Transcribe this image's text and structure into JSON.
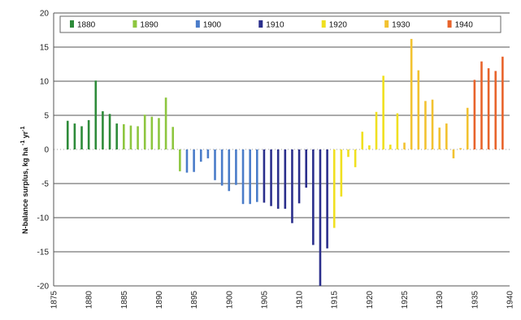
{
  "chart_data": {
    "type": "bar",
    "ylabel": "N-balance surplus, kg ha",
    "ylabel_superscripts": [
      "-1",
      "yr",
      "-1"
    ],
    "ylim": [
      -20,
      20
    ],
    "y_ticks": [
      "20",
      "15",
      "10",
      "5",
      "0",
      "-5",
      "-10",
      "-15",
      "-20"
    ],
    "xlim": [
      1875,
      1940
    ],
    "x_ticks": [
      "1875",
      "1880",
      "1885",
      "1890",
      "1895",
      "1900",
      "1905",
      "1910",
      "1915",
      "1920",
      "1925",
      "1930",
      "1935",
      "1940"
    ],
    "grid": "horizontal",
    "legend_position": "top",
    "series": [
      {
        "name": "1880",
        "color": "#2e8b3a",
        "x": [
          1877,
          1878,
          1879,
          1880,
          1881,
          1882,
          1883,
          1884
        ],
        "values": [
          4.2,
          3.8,
          3.4,
          4.3,
          10.1,
          5.6,
          5.2,
          3.8
        ]
      },
      {
        "name": "1890",
        "color": "#8dc63f",
        "x": [
          1885,
          1886,
          1887,
          1888,
          1889,
          1890,
          1891,
          1892,
          1893
        ],
        "values": [
          3.7,
          3.5,
          3.4,
          5.1,
          4.8,
          4.6,
          7.6,
          3.3,
          -3.2
        ]
      },
      {
        "name": "1900",
        "color": "#4a7cc9",
        "x": [
          1894,
          1895,
          1896,
          1897,
          1898,
          1899,
          1900,
          1901,
          1902,
          1903,
          1904
        ],
        "values": [
          -3.4,
          -3.3,
          -1.8,
          -1.3,
          -4.5,
          -5.3,
          -6.1,
          -5.2,
          -8.0,
          -8.0,
          -7.7
        ]
      },
      {
        "name": "1910",
        "color": "#2b2f8c",
        "x": [
          1905,
          1906,
          1907,
          1908,
          1909,
          1910,
          1911,
          1912,
          1913,
          1914
        ],
        "values": [
          -7.8,
          -8.3,
          -8.7,
          -8.7,
          -10.8,
          -7.9,
          -5.6,
          -14.0,
          -20.0,
          -14.5
        ]
      },
      {
        "name": "1920",
        "color": "#f0e020",
        "x": [
          1915,
          1916,
          1917,
          1918,
          1919,
          1920,
          1921,
          1922,
          1923,
          1924
        ],
        "values": [
          -11.5,
          -6.9,
          -1.1,
          -2.6,
          2.6,
          0.6,
          5.5,
          10.8,
          0.7,
          5.3
        ]
      },
      {
        "name": "1930",
        "color": "#f2c230",
        "x": [
          1925,
          1926,
          1927,
          1928,
          1929,
          1930,
          1931,
          1932,
          1933,
          1934
        ],
        "values": [
          1.0,
          16.2,
          11.6,
          7.1,
          7.3,
          3.2,
          3.8,
          -1.3,
          0.2,
          6.1
        ]
      },
      {
        "name": "1940",
        "color": "#e8642c",
        "x": [
          1935,
          1936,
          1937,
          1938,
          1939
        ],
        "values": [
          10.2,
          12.9,
          11.9,
          11.5,
          13.6
        ]
      }
    ]
  }
}
